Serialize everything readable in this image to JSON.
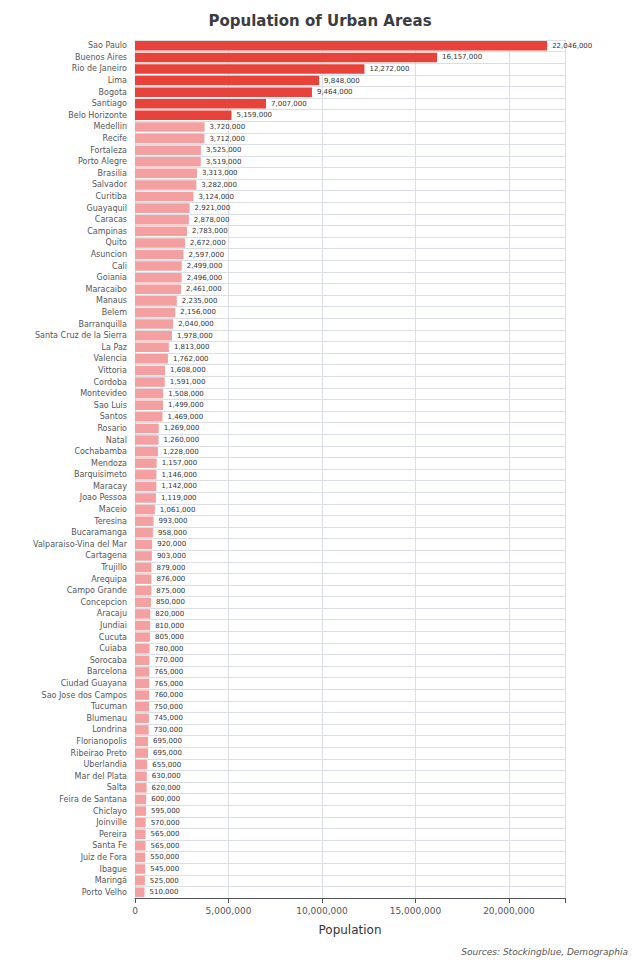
{
  "chart_data": {
    "type": "bar",
    "orientation": "horizontal",
    "title": "Population of Urban Areas",
    "xlabel": "Population",
    "annotations": [
      "Sources: Stockingblue, Demographia"
    ],
    "categories": [
      "Sao Paulo",
      "Buenos Aires",
      "Rio de Janeiro",
      "Lima",
      "Bogota",
      "Santiago",
      "Belo Horizonte",
      "Medellin",
      "Recife",
      "Fortaleza",
      "Porto Alegre",
      "Brasilia",
      "Salvador",
      "Curitiba",
      "Guayaquil",
      "Caracas",
      "Campinas",
      "Quito",
      "Asuncion",
      "Cali",
      "Goiania",
      "Maracaibo",
      "Manaus",
      "Belem",
      "Barranquilla",
      "Santa Cruz de la Sierra",
      "La Paz",
      "Valencia",
      "Vittoria",
      "Cordoba",
      "Montevideo",
      "Sao Luis",
      "Santos",
      "Rosario",
      "Natal",
      "Cochabamba",
      "Mendoza",
      "Barquisimeto",
      "Maracay",
      "Joao Pessoa",
      "Maceio",
      "Teresina",
      "Bucaramanga",
      "Valparaiso-Vina del Mar",
      "Cartagena",
      "Trujillo",
      "Arequipa",
      "Campo Grande",
      "Concepcion",
      "Aracaju",
      "Jundiai",
      "Cucuta",
      "Cuiaba",
      "Sorocaba",
      "Barcelona",
      "Ciudad Guayana",
      "Sao Jose dos Campos",
      "Tucuman",
      "Blumenau",
      "Londrina",
      "Florianopolis",
      "Ribeirao Preto",
      "Uberlandia",
      "Mar del Plata",
      "Salta",
      "Feira de Santana",
      "Chiclayo",
      "Joinville",
      "Pereira",
      "Santa Fe",
      "Juiz de Fora",
      "Ibague",
      "Maringá",
      "Porto Velho"
    ],
    "values": [
      22046000,
      16157000,
      12272000,
      9848000,
      9464000,
      7007000,
      5159000,
      3720000,
      3712000,
      3525000,
      3519000,
      3313000,
      3282000,
      3124000,
      2921000,
      2878000,
      2783000,
      2672000,
      2597000,
      2499000,
      2496000,
      2461000,
      2235000,
      2156000,
      2040000,
      1978000,
      1813000,
      1762000,
      1608000,
      1591000,
      1508000,
      1499000,
      1469000,
      1269000,
      1260000,
      1228000,
      1157000,
      1146000,
      1142000,
      1119000,
      1061000,
      993000,
      958000,
      920000,
      903000,
      879000,
      876000,
      875000,
      850000,
      820000,
      810000,
      805000,
      780000,
      770000,
      765000,
      765000,
      760000,
      750000,
      745000,
      730000,
      695000,
      695000,
      655000,
      630000,
      620000,
      600000,
      595000,
      570000,
      565000,
      565000,
      550000,
      545000,
      525000,
      510000
    ],
    "value_labels": [
      "22,046,000",
      "16,157,000",
      "12,272,000",
      "9,848,000",
      "9,464,000",
      "7,007,000",
      "5,159,000",
      "3,720,000",
      "3,712,000",
      "3,525,000",
      "3,519,000",
      "3,313,000",
      "3,282,000",
      "3,124,000",
      "2,921,000",
      "2,878,000",
      "2,783,000",
      "2,672,000",
      "2,597,000",
      "2,499,000",
      "2,496,000",
      "2,461,000",
      "2,235,000",
      "2,156,000",
      "2,040,000",
      "1,978,000",
      "1,813,000",
      "1,762,000",
      "1,608,000",
      "1,591,000",
      "1,508,000",
      "1,499,000",
      "1,469,000",
      "1,269,000",
      "1,260,000",
      "1,228,000",
      "1,157,000",
      "1,146,000",
      "1,142,000",
      "1,119,000",
      "1,061,000",
      "993,000",
      "958,000",
      "920,000",
      "903,000",
      "879,000",
      "876,000",
      "875,000",
      "850,000",
      "820,000",
      "810,000",
      "805,000",
      "780,000",
      "770,000",
      "765,000",
      "765,000",
      "760,000",
      "750,000",
      "745,000",
      "730,000",
      "695,000",
      "695,000",
      "655,000",
      "630,000",
      "620,000",
      "600,000",
      "595,000",
      "570,000",
      "565,000",
      "565,000",
      "550,000",
      "545,000",
      "525,000",
      "510,000"
    ],
    "data_labels": true,
    "colors": [
      "#e8433a",
      "#e8433a",
      "#e8433a",
      "#e8433a",
      "#e8433a",
      "#e8433a",
      "#e8433a",
      "#f4a0a0",
      "#f4a0a0",
      "#f4a0a0",
      "#f4a0a0",
      "#f4a0a0",
      "#f4a0a0",
      "#f4a0a0",
      "#f4a0a0",
      "#f4a0a0",
      "#f4a0a0",
      "#f4a0a0",
      "#f4a0a0",
      "#f4a0a0",
      "#f4a0a0",
      "#f4a0a0",
      "#f4a0a0",
      "#f4a0a0",
      "#f4a0a0",
      "#f4a0a0",
      "#f4a0a0",
      "#f4a0a0",
      "#f4a0a0",
      "#f4a0a0",
      "#f4a0a0",
      "#f4a0a0",
      "#f4a0a0",
      "#f4a0a0",
      "#f4a0a0",
      "#f4a0a0",
      "#f4a0a0",
      "#f4a0a0",
      "#f4a0a0",
      "#f4a0a0",
      "#f4a0a0",
      "#f4a0a0",
      "#f4a0a0",
      "#f4a0a0",
      "#f4a0a0",
      "#f4a0a0",
      "#f4a0a0",
      "#f4a0a0",
      "#f4a0a0",
      "#f4a0a0",
      "#f4a0a0",
      "#f4a0a0",
      "#f4a0a0",
      "#f4a0a0",
      "#f4a0a0",
      "#f4a0a0",
      "#f4a0a0",
      "#f4a0a0",
      "#f4a0a0",
      "#f4a0a0",
      "#f4a0a0",
      "#f4a0a0",
      "#f4a0a0",
      "#f4a0a0",
      "#f4a0a0",
      "#f4a0a0",
      "#f4a0a0",
      "#f4a0a0",
      "#f4a0a0",
      "#f4a0a0",
      "#f4a0a0",
      "#f4a0a0",
      "#f4a0a0",
      "#f4a0a0"
    ],
    "xlim": [
      0,
      23000000
    ],
    "xticks": [
      0,
      {
        "value": 5000000,
        "label": "5,000,000"
      },
      {
        "value": 10000000,
        "label": "10,000,000"
      },
      {
        "value": 15000000,
        "label": "15,000,000"
      },
      {
        "value": 20000000,
        "label": "20,000,000"
      }
    ],
    "grid": true
  }
}
